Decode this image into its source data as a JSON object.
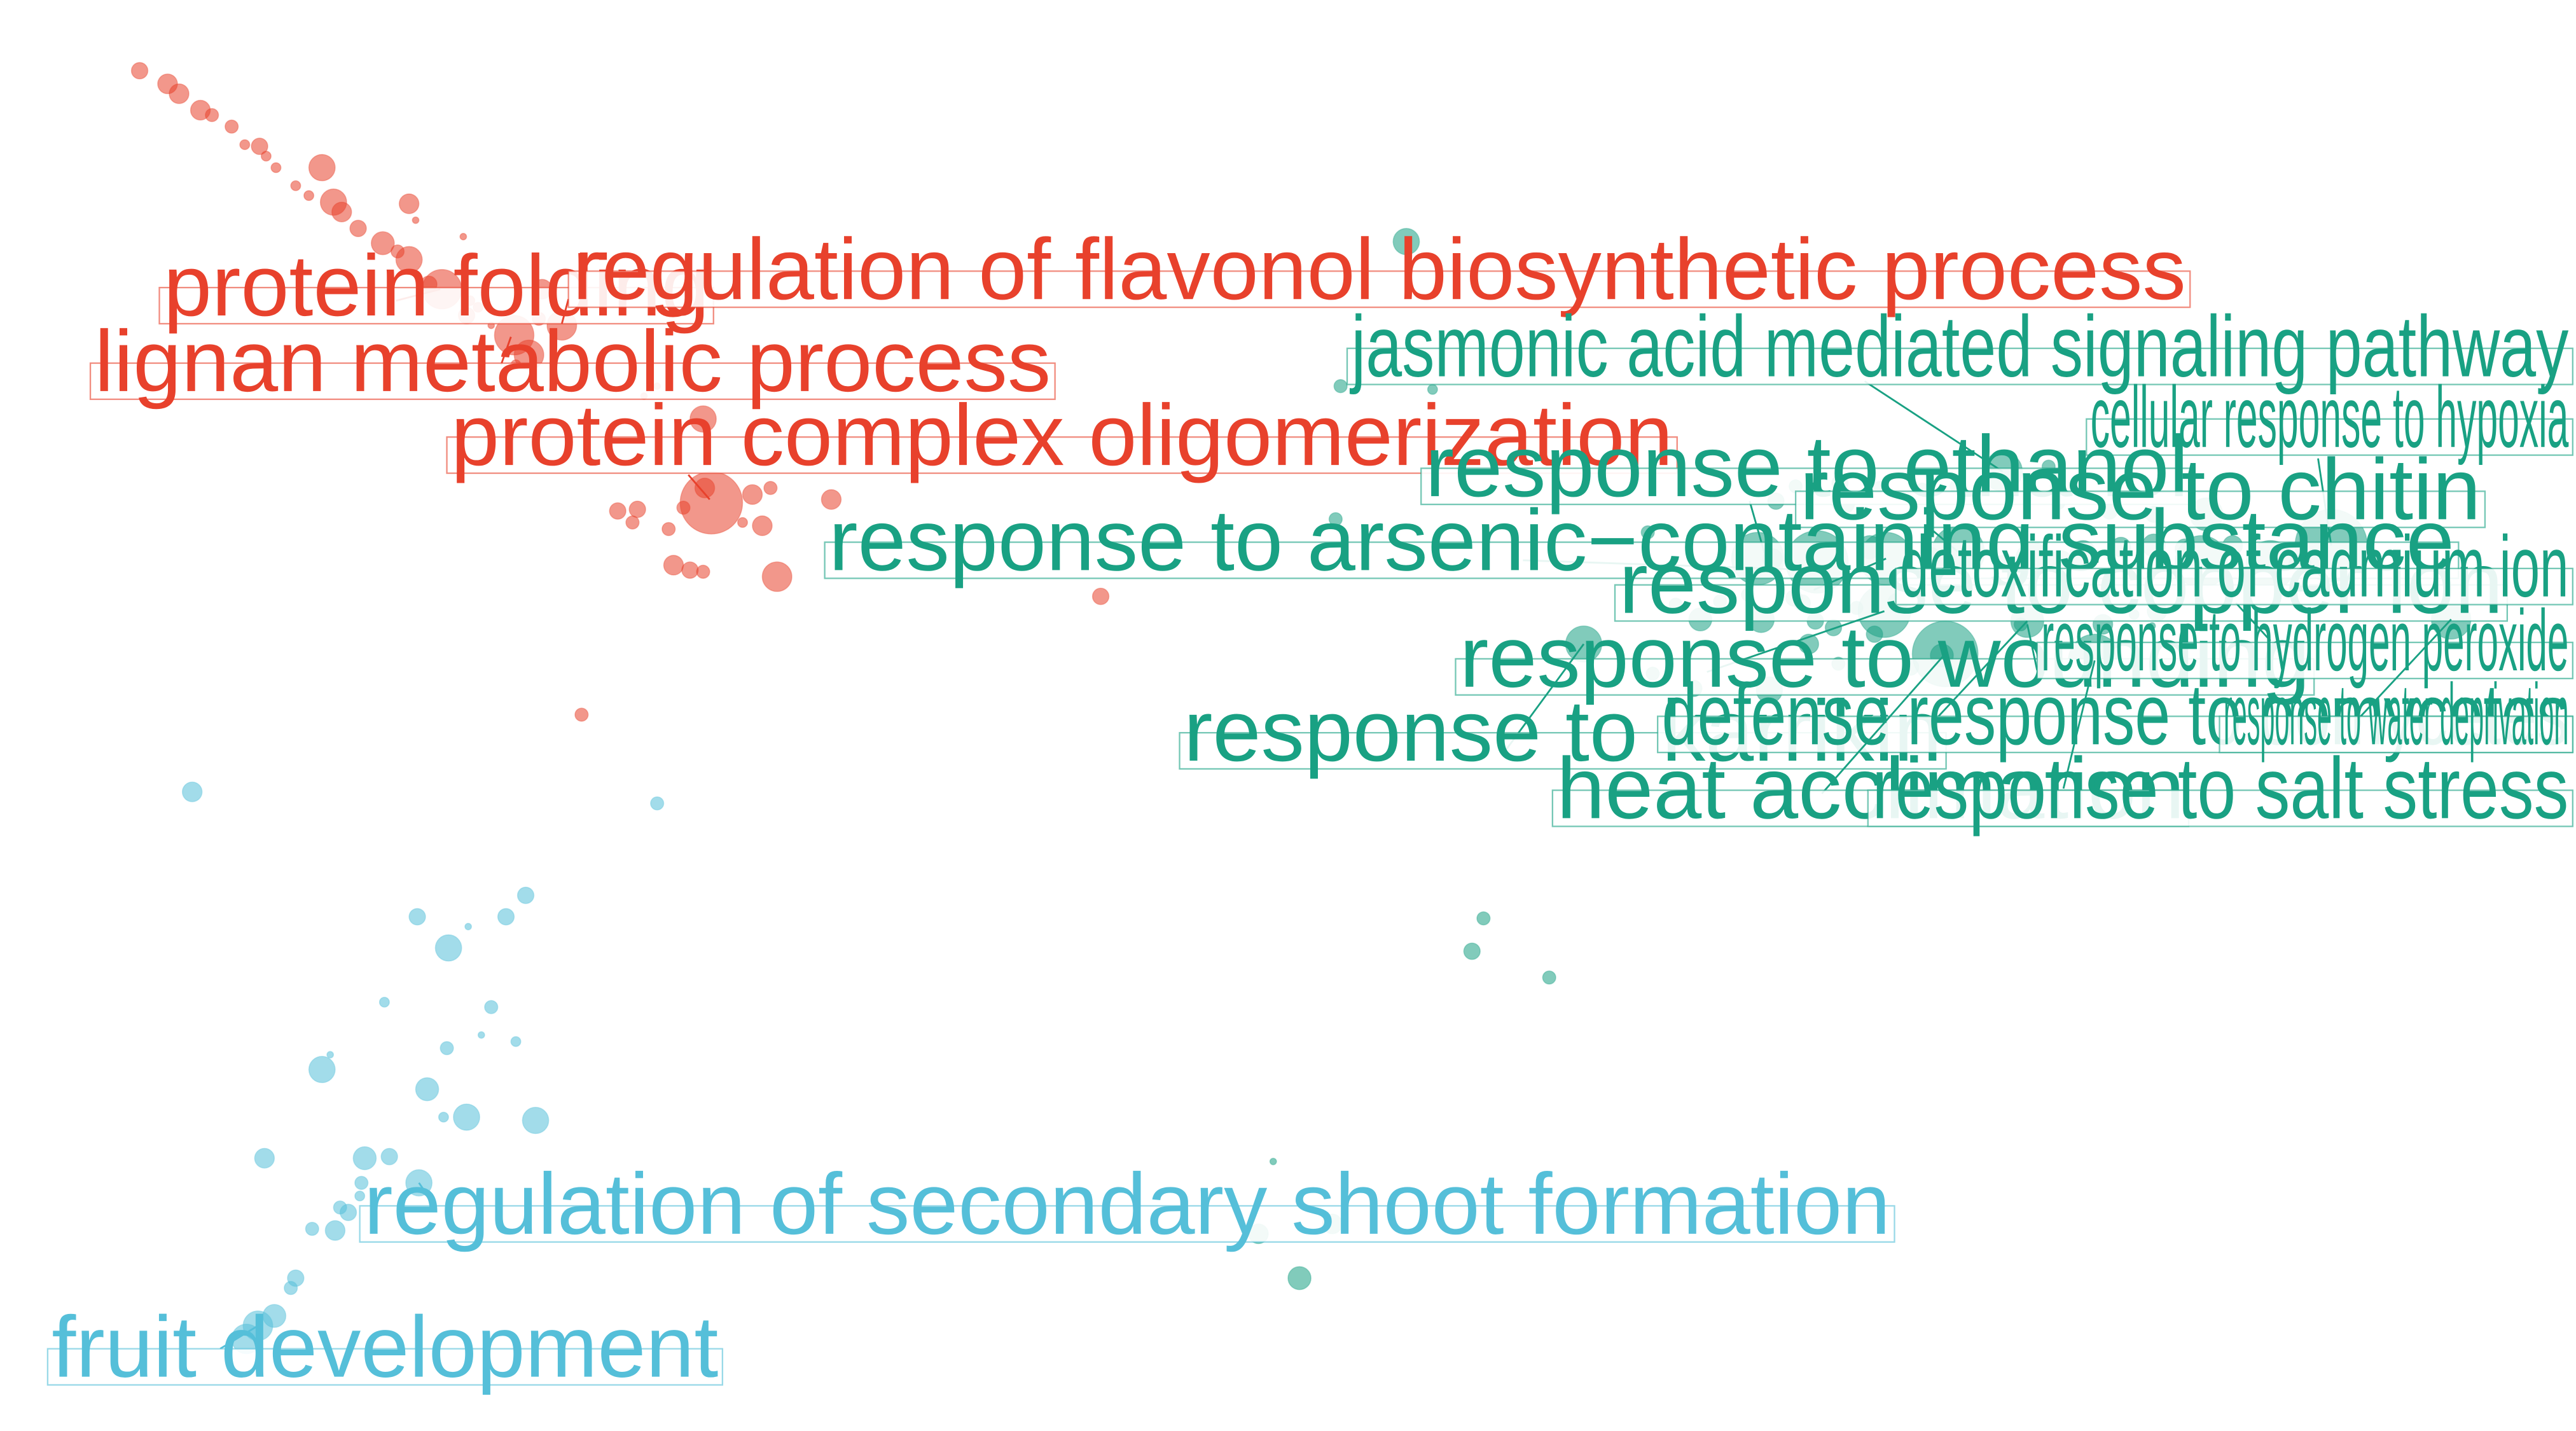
{
  "colors": {
    "red": "#E8412C",
    "teal": "#19A183",
    "blue": "#55BFD9"
  },
  "chart_data": {
    "type": "scatter",
    "title": "",
    "xlabel": "",
    "ylabel": "",
    "xlim": [
      0,
      1568
    ],
    "ylim": [
      0,
      871
    ],
    "grid": false,
    "legend": "none",
    "series": [
      {
        "name": "",
        "color_key": "red",
        "points": [
          [
            85,
            43,
            5
          ],
          [
            102,
            51,
            6
          ],
          [
            109,
            57,
            6
          ],
          [
            122,
            67,
            6
          ],
          [
            129,
            70,
            4
          ],
          [
            141,
            77,
            4
          ],
          [
            158,
            89,
            5
          ],
          [
            149,
            88,
            3
          ],
          [
            162,
            95,
            3
          ],
          [
            168,
            102,
            3
          ],
          [
            196,
            102,
            8
          ],
          [
            180,
            113,
            3
          ],
          [
            188,
            119,
            3
          ],
          [
            203,
            123,
            8
          ],
          [
            208,
            129,
            6
          ],
          [
            249,
            124,
            6
          ],
          [
            253,
            134,
            2
          ],
          [
            218,
            139,
            5
          ],
          [
            233,
            148,
            7
          ],
          [
            242,
            153,
            4
          ],
          [
            249,
            158,
            8
          ],
          [
            269,
            176,
            12
          ],
          [
            261,
            173,
            5
          ],
          [
            282,
            144,
            2
          ],
          [
            286,
            183,
            3
          ],
          [
            291,
            187,
            3
          ],
          [
            284,
            192,
            5
          ],
          [
            299,
            198,
            2
          ],
          [
            313,
            204,
            12
          ],
          [
            322,
            216,
            9
          ],
          [
            330,
            176,
            6
          ],
          [
            328,
            194,
            4
          ],
          [
            342,
            198,
            9
          ],
          [
            314,
            222,
            3
          ],
          [
            428,
            255,
            8
          ],
          [
            392,
            241,
            2
          ],
          [
            400,
            235,
            2
          ],
          [
            433,
            306,
            19
          ],
          [
            429,
            297,
            6
          ],
          [
            416,
            309,
            4
          ],
          [
            458,
            301,
            6
          ],
          [
            469,
            297,
            4
          ],
          [
            376,
            311,
            5
          ],
          [
            388,
            310,
            5
          ],
          [
            385,
            318,
            4
          ],
          [
            407,
            322,
            4
          ],
          [
            452,
            318,
            3
          ],
          [
            464,
            320,
            6
          ],
          [
            506,
            304,
            6
          ],
          [
            410,
            344,
            6
          ],
          [
            420,
            347,
            5
          ],
          [
            428,
            348,
            4
          ],
          [
            473,
            351,
            9
          ],
          [
            670,
            363,
            5
          ],
          [
            354,
            435,
            4
          ]
        ]
      },
      {
        "name": "",
        "color_key": "teal",
        "points": [
          [
            856,
            147,
            8
          ],
          [
            816,
            235,
            4
          ],
          [
            872,
            237,
            3
          ],
          [
            930,
            282,
            2
          ],
          [
            813,
            316,
            4
          ],
          [
            1003,
            324,
            4
          ],
          [
            1081,
            305,
            5
          ],
          [
            1093,
            296,
            4
          ],
          [
            1120,
            294,
            5
          ],
          [
            1122,
            306,
            7
          ],
          [
            1144,
            297,
            4
          ],
          [
            1170,
            298,
            4
          ],
          [
            1192,
            296,
            5
          ],
          [
            1219,
            287,
            12
          ],
          [
            1247,
            284,
            4
          ],
          [
            1252,
            296,
            4
          ],
          [
            1253,
            306,
            4
          ],
          [
            1284,
            311,
            5
          ],
          [
            1311,
            313,
            5
          ],
          [
            1343,
            313,
            10
          ],
          [
            1070,
            340,
            16
          ],
          [
            1079,
            340,
            6
          ],
          [
            1106,
            342,
            19
          ],
          [
            1148,
            340,
            16
          ],
          [
            1138,
            333,
            7
          ],
          [
            1192,
            336,
            16
          ],
          [
            1199,
            344,
            6
          ],
          [
            1175,
            339,
            6
          ],
          [
            1219,
            343,
            5
          ],
          [
            1237,
            340,
            10
          ],
          [
            1254,
            343,
            8
          ],
          [
            1268,
            337,
            8
          ],
          [
            1291,
            333,
            6
          ],
          [
            1311,
            332,
            7
          ],
          [
            1330,
            334,
            6
          ],
          [
            1340,
            342,
            16
          ],
          [
            1359,
            332,
            6
          ],
          [
            1382,
            344,
            15
          ],
          [
            1400,
            344,
            7
          ],
          [
            1419,
            332,
            22
          ],
          [
            1064,
            362,
            4
          ],
          [
            1072,
            377,
            8
          ],
          [
            1097,
            367,
            5
          ],
          [
            1116,
            382,
            5
          ],
          [
            1141,
            386,
            5
          ],
          [
            1155,
            367,
            6
          ],
          [
            1147,
            372,
            16
          ],
          [
            1092,
            364,
            5
          ],
          [
            1035,
            377,
            7
          ],
          [
            1047,
            366,
            4
          ],
          [
            1020,
            368,
            4
          ],
          [
            1130,
            370,
            4
          ],
          [
            1105,
            378,
            5
          ],
          [
            1101,
            392,
            6
          ],
          [
            1230,
            380,
            4
          ],
          [
            1234,
            378,
            10
          ],
          [
            1280,
            380,
            6
          ],
          [
            1299,
            374,
            3
          ],
          [
            1313,
            372,
            6
          ],
          [
            1310,
            381,
            2
          ],
          [
            1492,
            377,
            12
          ],
          [
            1275,
            402,
            16
          ],
          [
            1184,
            398,
            20
          ],
          [
            1182,
            399,
            7
          ],
          [
            1163,
            406,
            5
          ],
          [
            1077,
            420,
            8
          ],
          [
            1031,
            419,
            5
          ],
          [
            964,
            392,
            11
          ],
          [
            1006,
            410,
            4
          ],
          [
            1119,
            404,
            4
          ],
          [
            903,
            559,
            4
          ],
          [
            896,
            579,
            5
          ],
          [
            943,
            595,
            4
          ],
          [
            775,
            707,
            2
          ],
          [
            811,
            745,
            6
          ],
          [
            766,
            751,
            6
          ],
          [
            791,
            778,
            7
          ]
        ]
      },
      {
        "name": "",
        "color_key": "blue",
        "points": [
          [
            117,
            482,
            6
          ],
          [
            400,
            489,
            4
          ],
          [
            320,
            545,
            5
          ],
          [
            254,
            558,
            5
          ],
          [
            308,
            558,
            5
          ],
          [
            285,
            564,
            2
          ],
          [
            273,
            577,
            8
          ],
          [
            234,
            610,
            3
          ],
          [
            299,
            613,
            4
          ],
          [
            293,
            630,
            2
          ],
          [
            272,
            638,
            4
          ],
          [
            314,
            634,
            3
          ],
          [
            201,
            642,
            2
          ],
          [
            196,
            651,
            8
          ],
          [
            260,
            663,
            7
          ],
          [
            270,
            680,
            3
          ],
          [
            284,
            680,
            8
          ],
          [
            326,
            682,
            8
          ],
          [
            161,
            705,
            6
          ],
          [
            222,
            705,
            7
          ],
          [
            237,
            704,
            5
          ],
          [
            255,
            720,
            8
          ],
          [
            220,
            720,
            4
          ],
          [
            219,
            728,
            3
          ],
          [
            207,
            735,
            4
          ],
          [
            212,
            738,
            5
          ],
          [
            190,
            748,
            4
          ],
          [
            204,
            749,
            6
          ],
          [
            180,
            778,
            5
          ],
          [
            177,
            784,
            4
          ],
          [
            167,
            801,
            7
          ],
          [
            157,
            807,
            9
          ],
          [
            150,
            815,
            9
          ]
        ]
      }
    ],
    "annotations": [
      {
        "text": "protein folding",
        "color_key": "red"
      },
      {
        "text": "regulation of flavonol biosynthetic process",
        "color_key": "red"
      },
      {
        "text": "lignan metabolic process",
        "color_key": "red"
      },
      {
        "text": "protein complex oligomerization",
        "color_key": "red"
      },
      {
        "text": "jasmonic acid mediated signaling pathway",
        "color_key": "teal"
      },
      {
        "text": "cellular response to hypoxia",
        "color_key": "teal"
      },
      {
        "text": "response to ethanol",
        "color_key": "teal"
      },
      {
        "text": "response to chitin",
        "color_key": "teal"
      },
      {
        "text": "response to arsenic−containing substance",
        "color_key": "teal"
      },
      {
        "text": "response to copper ion",
        "color_key": "teal"
      },
      {
        "text": "detoxification of cadmium ion",
        "color_key": "teal"
      },
      {
        "text": "response to wounding",
        "color_key": "teal"
      },
      {
        "text": "response to hydrogen peroxide",
        "color_key": "teal"
      },
      {
        "text": "response to karrikin",
        "color_key": "teal"
      },
      {
        "text": "defense response to oomycetes",
        "color_key": "teal"
      },
      {
        "text": "response to water deprivation",
        "color_key": "teal"
      },
      {
        "text": "heat acclimation",
        "color_key": "teal"
      },
      {
        "text": "response to salt stress",
        "color_key": "teal"
      },
      {
        "text": "regulation of secondary shoot formation",
        "color_key": "blue"
      },
      {
        "text": "fruit development",
        "color_key": "blue"
      }
    ]
  }
}
